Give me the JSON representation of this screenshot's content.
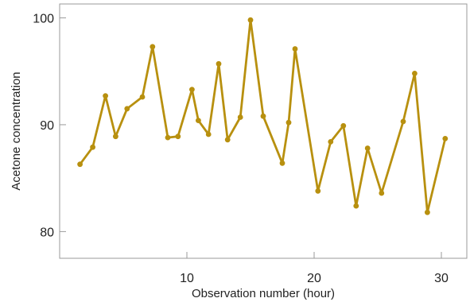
{
  "chart_data": {
    "type": "line",
    "xlabel": "Observation number (hour)",
    "ylabel": "Acetone concentration",
    "xlim": [
      0,
      32
    ],
    "ylim": [
      77.5,
      101.3
    ],
    "x_ticks": [
      10,
      20,
      30
    ],
    "y_ticks": [
      80,
      90,
      100
    ],
    "grid": false,
    "series": [
      {
        "color": "#b8900f",
        "x": [
          1.6,
          2.6,
          3.6,
          4.4,
          5.3,
          6.5,
          7.3,
          8.5,
          9.3,
          10.4,
          10.9,
          11.7,
          12.5,
          13.2,
          14.2,
          15.0,
          16.0,
          17.5,
          18.0,
          18.5,
          20.3,
          21.3,
          22.3,
          23.3,
          24.2,
          25.3,
          27.0,
          27.9,
          28.9,
          30.3
        ],
        "y": [
          86.3,
          87.9,
          92.7,
          88.9,
          91.5,
          92.6,
          97.3,
          88.8,
          88.9,
          93.3,
          90.4,
          89.1,
          95.7,
          88.6,
          90.7,
          99.8,
          90.8,
          86.4,
          90.2,
          97.1,
          83.8,
          88.4,
          89.9,
          82.4,
          87.8,
          83.6,
          90.3,
          94.8,
          81.8,
          88.7
        ]
      }
    ]
  }
}
